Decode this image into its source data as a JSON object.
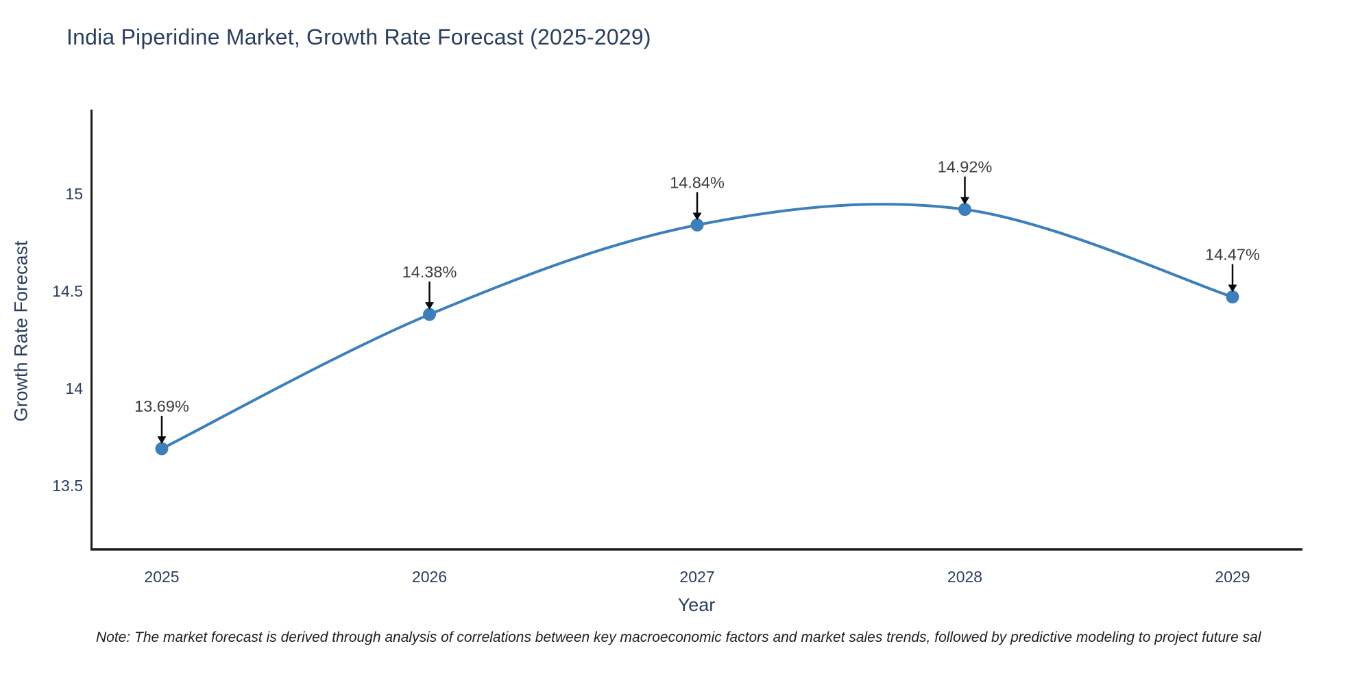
{
  "title": "India Piperidine Market, Growth Rate Forecast (2025-2029)",
  "note": "Note: The market forecast is derived through analysis of correlations between key macroeconomic factors and market sales trends, followed by predictive modeling to project future sal",
  "chart_data": {
    "type": "line",
    "title": "India Piperidine Market, Growth Rate Forecast (2025-2029)",
    "xlabel": "Year",
    "ylabel": "Growth Rate Forecast",
    "x": [
      2025,
      2026,
      2027,
      2028,
      2029
    ],
    "series": [
      {
        "name": "Growth Rate Forecast",
        "values": [
          13.69,
          14.38,
          14.84,
          14.92,
          14.47
        ],
        "point_labels": [
          "13.69%",
          "14.38%",
          "14.84%",
          "14.92%",
          "14.47%"
        ]
      }
    ],
    "yticks": [
      13.5,
      14,
      14.5,
      15
    ],
    "ytick_labels": [
      "13.5",
      "14",
      "14.5",
      "15"
    ],
    "xtick_labels": [
      "2025",
      "2026",
      "2027",
      "2028",
      "2029"
    ],
    "ylim": [
      13.17,
      15.43
    ],
    "grid": false,
    "legend": "none",
    "line_shape": "spline",
    "annotation_arrows": true,
    "colors": {
      "line": "#3d7fba",
      "marker": "#3d7fba",
      "axis_spine": "#1a1a1a",
      "tick_label": "#2a3f5f",
      "title": "#2a3f5f",
      "annotation_text": "#3d3d3d",
      "arrow": "#0a0a0a",
      "background": "#ffffff"
    }
  }
}
